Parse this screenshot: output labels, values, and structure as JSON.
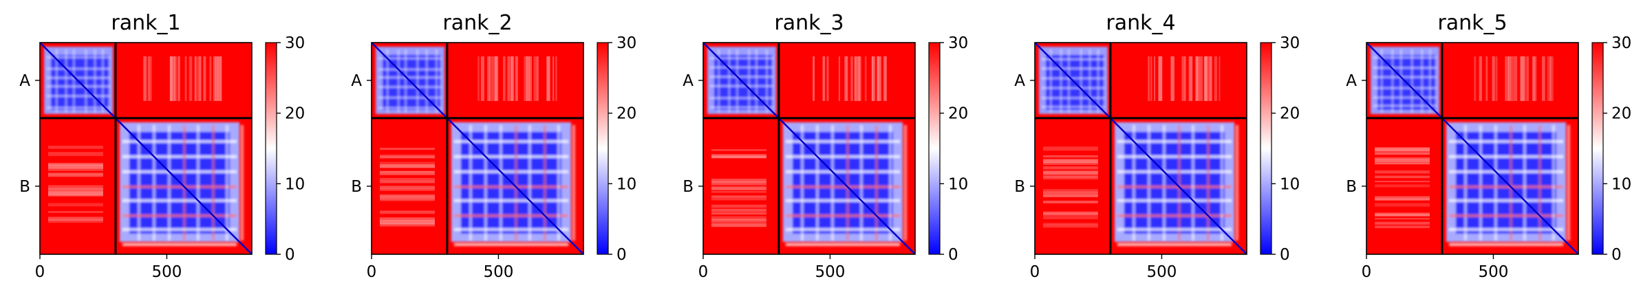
{
  "chart_data": {
    "type": "heatmap",
    "description_colormap": "bwr",
    "colorbar": {
      "vmin": 0,
      "vmax": 30,
      "ticks": [
        0,
        10,
        20,
        30
      ],
      "colors": [
        "#0000ff",
        "#ffffff",
        "#ff0000"
      ]
    },
    "x_range": [
      0,
      835
    ],
    "x_ticks": [
      0,
      500
    ],
    "chain_boundary": 298,
    "chains": [
      "A",
      "B"
    ],
    "panels": [
      {
        "title": "rank_1"
      },
      {
        "title": "rank_2"
      },
      {
        "title": "rank_3"
      },
      {
        "title": "rank_4"
      },
      {
        "title": "rank_5"
      }
    ]
  }
}
